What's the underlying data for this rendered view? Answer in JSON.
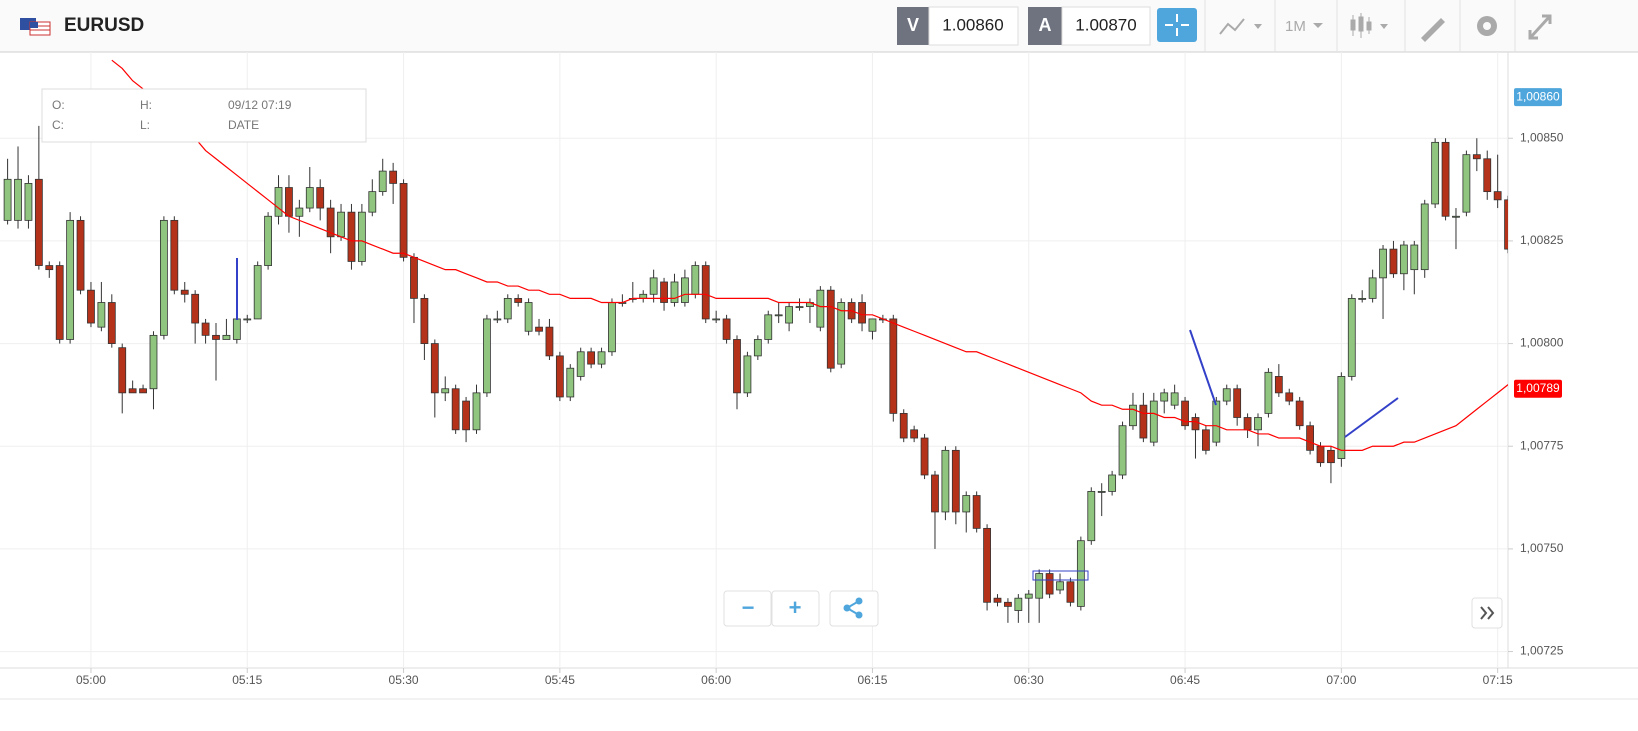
{
  "header": {
    "symbol": "EURUSD",
    "bid_label": "V",
    "bid": "1.00860",
    "ask_label": "A",
    "ask": "1.00870",
    "timeframe": "1M"
  },
  "tooltip": {
    "o": "O:",
    "h": "H:",
    "time": "09/12 07:19",
    "c": "C:",
    "l": "L:",
    "date": "DATE"
  },
  "zoom": {
    "minus": "−",
    "plus": "+"
  },
  "chart_data": {
    "type": "candlestick",
    "up_color": "#8fc57e",
    "down_color": "#b5321a",
    "grid": true,
    "categories": [
      null,
      null,
      null,
      null,
      null,
      null,
      null,
      null,
      "05:00",
      null,
      null,
      null,
      null,
      null,
      null,
      null,
      null,
      null,
      null,
      null,
      null,
      null,
      null,
      "05:15",
      null,
      null,
      null,
      null,
      null,
      null,
      null,
      null,
      null,
      null,
      null,
      null,
      null,
      null,
      "05:30",
      null,
      null,
      null,
      null,
      null,
      null,
      null,
      null,
      null,
      null,
      null,
      null,
      null,
      null,
      "05:45",
      null,
      null,
      null,
      null,
      null,
      null,
      null,
      null,
      null,
      null,
      null,
      null,
      null,
      null,
      "06:00",
      null,
      null,
      null,
      null,
      null,
      null,
      null,
      null,
      null,
      null,
      null,
      null,
      null,
      null,
      "06:15",
      null,
      null,
      null,
      null,
      null,
      null,
      null,
      null,
      null,
      null,
      null,
      null,
      null,
      null,
      "06:30",
      null,
      null,
      null,
      null,
      null,
      null,
      null,
      null,
      null,
      null,
      null,
      null,
      null,
      null,
      "06:45",
      null,
      null,
      null,
      null,
      null,
      null,
      null,
      null,
      null,
      null,
      null,
      null,
      null,
      null,
      "07:00",
      null,
      null,
      null,
      null,
      null,
      null,
      null,
      null,
      null,
      null,
      null,
      null,
      null,
      null,
      "07:15",
      null
    ],
    "candles": [
      [
        1.0083,
        1.00845,
        1.00829,
        1.0084
      ],
      [
        1.0083,
        1.00848,
        1.00828,
        1.0084
      ],
      [
        1.0083,
        1.00841,
        1.00828,
        1.00839
      ],
      [
        1.0084,
        1.00853,
        1.00818,
        1.00819
      ],
      [
        1.00819,
        1.0082,
        1.00816,
        1.00818
      ],
      [
        1.00819,
        1.0082,
        1.008,
        1.00801
      ],
      [
        1.00801,
        1.00832,
        1.008,
        1.0083
      ],
      [
        1.0083,
        1.00831,
        1.00812,
        1.00813
      ],
      [
        1.00813,
        1.00815,
        1.00804,
        1.00805
      ],
      [
        1.00804,
        1.00815,
        1.00803,
        1.0081
      ],
      [
        1.0081,
        1.00812,
        1.00799,
        1.008
      ],
      [
        1.00799,
        1.008,
        1.00783,
        1.00788
      ],
      [
        1.00789,
        1.00791,
        1.00788,
        1.00788
      ],
      [
        1.00789,
        1.0079,
        1.00788,
        1.00788
      ],
      [
        1.00789,
        1.00803,
        1.00784,
        1.00802
      ],
      [
        1.00802,
        1.00831,
        1.00801,
        1.0083
      ],
      [
        1.0083,
        1.00831,
        1.00812,
        1.00813
      ],
      [
        1.00813,
        1.00815,
        1.0081,
        1.00812
      ],
      [
        1.00812,
        1.00813,
        1.008,
        1.00805
      ],
      [
        1.00805,
        1.00806,
        1.008,
        1.00802
      ],
      [
        1.00802,
        1.00805,
        1.00791,
        1.00801
      ],
      [
        1.00801,
        1.00806,
        1.00801,
        1.00802
      ],
      [
        1.00801,
        1.00808,
        1.008,
        1.00806
      ],
      [
        1.00806,
        1.00807,
        1.00805,
        1.00806
      ],
      [
        1.00806,
        1.0082,
        1.00806,
        1.00819
      ],
      [
        1.00819,
        1.00832,
        1.00818,
        1.00831
      ],
      [
        1.00831,
        1.00841,
        1.00829,
        1.00838
      ],
      [
        1.00838,
        1.00841,
        1.00827,
        1.00831
      ],
      [
        1.00831,
        1.00835,
        1.00826,
        1.00833
      ],
      [
        1.00833,
        1.00843,
        1.00832,
        1.00838
      ],
      [
        1.00838,
        1.0084,
        1.0083,
        1.00833
      ],
      [
        1.00833,
        1.00835,
        1.00822,
        1.00826
      ],
      [
        1.00826,
        1.00834,
        1.00825,
        1.00832
      ],
      [
        1.00832,
        1.00834,
        1.00818,
        1.0082
      ],
      [
        1.0082,
        1.00834,
        1.00819,
        1.00832
      ],
      [
        1.00832,
        1.0084,
        1.00831,
        1.00837
      ],
      [
        1.00837,
        1.00845,
        1.00836,
        1.00842
      ],
      [
        1.00842,
        1.00844,
        1.00834,
        1.00839
      ],
      [
        1.00839,
        1.0084,
        1.0082,
        1.00821
      ],
      [
        1.00821,
        1.00822,
        1.00805,
        1.00811
      ],
      [
        1.00811,
        1.00812,
        1.00796,
        1.008
      ],
      [
        1.008,
        1.00801,
        1.00782,
        1.00788
      ],
      [
        1.00788,
        1.00792,
        1.00786,
        1.00789
      ],
      [
        1.00789,
        1.0079,
        1.00778,
        1.00779
      ],
      [
        1.00786,
        1.00787,
        1.00776,
        1.00779
      ],
      [
        1.00779,
        1.0079,
        1.00778,
        1.00788
      ],
      [
        1.00788,
        1.00807,
        1.00787,
        1.00806
      ],
      [
        1.00806,
        1.00808,
        1.00805,
        1.00806
      ],
      [
        1.00806,
        1.00812,
        1.00805,
        1.00811
      ],
      [
        1.00811,
        1.00812,
        1.00809,
        1.0081
      ],
      [
        1.00803,
        1.00811,
        1.00802,
        1.0081
      ],
      [
        1.00804,
        1.00806,
        1.00802,
        1.00803
      ],
      [
        1.00804,
        1.00806,
        1.00796,
        1.00797
      ],
      [
        1.00797,
        1.00798,
        1.00786,
        1.00787
      ],
      [
        1.00787,
        1.00795,
        1.00786,
        1.00794
      ],
      [
        1.00792,
        1.00799,
        1.00791,
        1.00798
      ],
      [
        1.00798,
        1.00799,
        1.00794,
        1.00795
      ],
      [
        1.00795,
        1.00799,
        1.00794,
        1.00798
      ],
      [
        1.00798,
        1.00811,
        1.00797,
        1.0081
      ],
      [
        1.0081,
        1.00812,
        1.00809,
        1.0081
      ],
      [
        1.00811,
        1.00815,
        1.0081,
        1.00811
      ],
      [
        1.00811,
        1.00813,
        1.0081,
        1.00812
      ],
      [
        1.00812,
        1.00818,
        1.0081,
        1.00816
      ],
      [
        1.00815,
        1.00816,
        1.00808,
        1.0081
      ],
      [
        1.0081,
        1.00817,
        1.00809,
        1.00815
      ],
      [
        1.0081,
        1.00818,
        1.00809,
        1.00816
      ],
      [
        1.00812,
        1.0082,
        1.00811,
        1.00819
      ],
      [
        1.00819,
        1.0082,
        1.00805,
        1.00806
      ],
      [
        1.00806,
        1.00808,
        1.00805,
        1.00806
      ],
      [
        1.00806,
        1.00807,
        1.008,
        1.00801
      ],
      [
        1.00801,
        1.00802,
        1.00784,
        1.00788
      ],
      [
        1.00788,
        1.00798,
        1.00787,
        1.00797
      ],
      [
        1.00797,
        1.00802,
        1.00796,
        1.00801
      ],
      [
        1.00801,
        1.00808,
        1.008,
        1.00807
      ],
      [
        1.00807,
        1.0081,
        1.00805,
        1.00807
      ],
      [
        1.00805,
        1.0081,
        1.00803,
        1.00809
      ],
      [
        1.00809,
        1.00811,
        1.00808,
        1.00809
      ],
      [
        1.00809,
        1.00811,
        1.00805,
        1.0081
      ],
      [
        1.00804,
        1.00814,
        1.00803,
        1.00813
      ],
      [
        1.00813,
        1.00814,
        1.00793,
        1.00794
      ],
      [
        1.00795,
        1.00811,
        1.00794,
        1.0081
      ],
      [
        1.0081,
        1.00811,
        1.00805,
        1.00806
      ],
      [
        1.0081,
        1.00812,
        1.00803,
        1.00805
      ],
      [
        1.00803,
        1.00806,
        1.00801,
        1.00806
      ],
      [
        1.00806,
        1.00807,
        1.00805,
        1.00806
      ],
      [
        1.00806,
        1.00807,
        1.00781,
        1.00783
      ],
      [
        1.00783,
        1.00784,
        1.00776,
        1.00777
      ],
      [
        1.00779,
        1.0078,
        1.00776,
        1.00777
      ],
      [
        1.00777,
        1.00778,
        1.00767,
        1.00768
      ],
      [
        1.00768,
        1.00769,
        1.0075,
        1.00759
      ],
      [
        1.00759,
        1.00775,
        1.00757,
        1.00774
      ],
      [
        1.00774,
        1.00775,
        1.00756,
        1.00759
      ],
      [
        1.00759,
        1.00764,
        1.00754,
        1.00763
      ],
      [
        1.00763,
        1.00764,
        1.00754,
        1.00755
      ],
      [
        1.00755,
        1.00756,
        1.00735,
        1.00737
      ],
      [
        1.00738,
        1.00739,
        1.00736,
        1.00737
      ],
      [
        1.00737,
        1.00738,
        1.00732,
        1.00736
      ],
      [
        1.00735,
        1.00739,
        1.00732,
        1.00738
      ],
      [
        1.00738,
        1.0074,
        1.00732,
        1.00739
      ],
      [
        1.00738,
        1.00745,
        1.00732,
        1.00744
      ],
      [
        1.00744,
        1.00745,
        1.00738,
        1.00739
      ],
      [
        1.0074,
        1.00744,
        1.00739,
        1.00742
      ],
      [
        1.00742,
        1.00743,
        1.00736,
        1.00737
      ],
      [
        1.00736,
        1.00753,
        1.00735,
        1.00752
      ],
      [
        1.00752,
        1.00765,
        1.00751,
        1.00764
      ],
      [
        1.00764,
        1.00766,
        1.00758,
        1.00764
      ],
      [
        1.00764,
        1.00769,
        1.00763,
        1.00768
      ],
      [
        1.00768,
        1.00781,
        1.00767,
        1.0078
      ],
      [
        1.0078,
        1.00788,
        1.00779,
        1.00785
      ],
      [
        1.00785,
        1.00788,
        1.00776,
        1.00777
      ],
      [
        1.00776,
        1.00788,
        1.00775,
        1.00786
      ],
      [
        1.00786,
        1.00789,
        1.00783,
        1.00788
      ],
      [
        1.00785,
        1.0079,
        1.00784,
        1.00788
      ],
      [
        1.00786,
        1.00787,
        1.00779,
        1.0078
      ],
      [
        1.00782,
        1.00783,
        1.00772,
        1.00779
      ],
      [
        1.00779,
        1.0078,
        1.00773,
        1.00774
      ],
      [
        1.00776,
        1.00787,
        1.00775,
        1.00786
      ],
      [
        1.00786,
        1.0079,
        1.00785,
        1.00789
      ],
      [
        1.00789,
        1.0079,
        1.0078,
        1.00782
      ],
      [
        1.00782,
        1.00783,
        1.00777,
        1.00779
      ],
      [
        1.00779,
        1.00783,
        1.00775,
        1.00782
      ],
      [
        1.00783,
        1.00794,
        1.00782,
        1.00793
      ],
      [
        1.00792,
        1.00795,
        1.00787,
        1.00788
      ],
      [
        1.00788,
        1.00789,
        1.00785,
        1.00786
      ],
      [
        1.00786,
        1.00787,
        1.00779,
        1.0078
      ],
      [
        1.0078,
        1.00781,
        1.00773,
        1.00774
      ],
      [
        1.00775,
        1.00776,
        1.0077,
        1.00771
      ],
      [
        1.00774,
        1.00775,
        1.00766,
        1.00771
      ],
      [
        1.00772,
        1.00793,
        1.0077,
        1.00792
      ],
      [
        1.00792,
        1.00812,
        1.00791,
        1.00811
      ],
      [
        1.00811,
        1.00813,
        1.0081,
        1.00811
      ],
      [
        1.00811,
        1.00818,
        1.0081,
        1.00816
      ],
      [
        1.00816,
        1.00824,
        1.00806,
        1.00823
      ],
      [
        1.00823,
        1.00825,
        1.00816,
        1.00817
      ],
      [
        1.00817,
        1.00825,
        1.00813,
        1.00824
      ],
      [
        1.00818,
        1.00825,
        1.00812,
        1.00824
      ],
      [
        1.00818,
        1.00835,
        1.00816,
        1.00834
      ],
      [
        1.00834,
        1.0085,
        1.00833,
        1.00849
      ],
      [
        1.00849,
        1.0085,
        1.0083,
        1.00831
      ],
      [
        1.00831,
        1.00833,
        1.00823,
        1.00831
      ],
      [
        1.00832,
        1.00847,
        1.00831,
        1.00846
      ],
      [
        1.00846,
        1.0085,
        1.00842,
        1.00845
      ],
      [
        1.00845,
        1.00847,
        1.00835,
        1.00837
      ],
      [
        1.00837,
        1.00846,
        1.00833,
        1.00835
      ],
      [
        1.00835,
        1.00836,
        1.00822,
        1.00823
      ]
    ],
    "ma": {
      "color": "#ff0000",
      "values": [
        null,
        null,
        null,
        null,
        null,
        null,
        null,
        null,
        null,
        null,
        1.00869,
        1.00867,
        1.00864,
        1.00862,
        1.00859,
        1.00857,
        1.00855,
        1.00852,
        1.0085,
        1.00847,
        1.00845,
        1.00843,
        1.00841,
        1.00839,
        1.00837,
        1.00835,
        1.00833,
        1.00831,
        1.0083,
        1.00829,
        1.00828,
        1.00827,
        1.00826,
        1.00825,
        1.00825,
        1.00824,
        1.00823,
        1.00822,
        1.00822,
        1.00821,
        1.0082,
        1.00819,
        1.00818,
        1.00818,
        1.00817,
        1.00816,
        1.00815,
        1.00815,
        1.00814,
        1.00814,
        1.00813,
        1.00813,
        1.00812,
        1.00812,
        1.00811,
        1.00811,
        1.00811,
        1.0081,
        1.0081,
        1.0081,
        1.00811,
        1.00811,
        1.00811,
        1.00811,
        1.00811,
        1.00812,
        1.00812,
        1.00812,
        1.00811,
        1.00811,
        1.00811,
        1.00811,
        1.00811,
        1.00811,
        1.0081,
        1.0081,
        1.0081,
        1.0081,
        1.00809,
        1.00809,
        1.00808,
        1.00808,
        1.00807,
        1.00807,
        1.00806,
        1.00805,
        1.00804,
        1.00803,
        1.00802,
        1.00801,
        1.008,
        1.00799,
        1.00798,
        1.00798,
        1.00797,
        1.00796,
        1.00795,
        1.00794,
        1.00793,
        1.00792,
        1.00791,
        1.0079,
        1.00789,
        1.00788,
        1.00786,
        1.00785,
        1.00785,
        1.00784,
        1.00784,
        1.00783,
        1.00783,
        1.00782,
        1.00782,
        1.00781,
        1.00781,
        1.0078,
        1.0078,
        1.00779,
        1.00779,
        1.00779,
        1.00778,
        1.00778,
        1.00777,
        1.00777,
        1.00777,
        1.00776,
        1.00775,
        1.00775,
        1.00774,
        1.00774,
        1.00774,
        1.00775,
        1.00775,
        1.00775,
        1.00776,
        1.00776,
        1.00777,
        1.00778,
        1.00779,
        1.0078,
        1.00782,
        1.00784,
        1.00786,
        1.00788,
        1.0079
      ]
    },
    "ylim": [
      1.00721,
      1.00871
    ],
    "yticks": [
      {
        "value": 1.0085,
        "label": "1,00850"
      },
      {
        "value": 1.00825,
        "label": "1,00825"
      },
      {
        "value": 1.008,
        "label": "1,00800"
      },
      {
        "value": 1.00775,
        "label": "1,00775"
      },
      {
        "value": 1.0075,
        "label": "1,00750"
      },
      {
        "value": 1.00725,
        "label": "1,00725"
      }
    ],
    "price_tags": [
      {
        "value": 1.0086,
        "label": "1,00860",
        "color": "#4ea6dc"
      },
      {
        "value": 1.00789,
        "label": "1,00789",
        "color": "#ff0000"
      }
    ]
  }
}
